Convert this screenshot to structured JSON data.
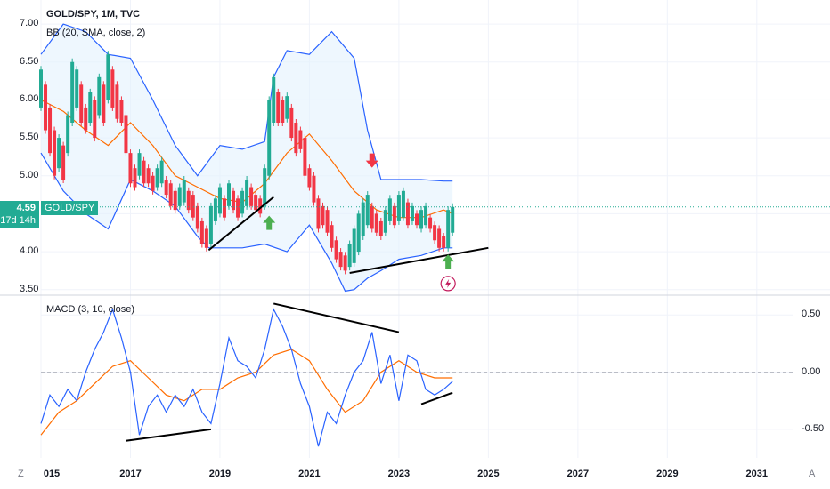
{
  "chart_data": {
    "type": "candlestick",
    "title": "GOLD/SPY, 1M, TVC",
    "indicator_bb_label": "BB (20, SMA, close, 2)",
    "indicator_macd_label": "MACD (3, 10, close)",
    "symbol": "GOLD/SPY",
    "last_price": "4.59",
    "countdown": "17d 14h",
    "price_axis": {
      "ticks": [
        "7.00",
        "6.50",
        "6.00",
        "5.50",
        "5.00",
        "4.50",
        "4.00",
        "3.50"
      ],
      "tick_values": [
        7.0,
        6.5,
        6.0,
        5.5,
        5.0,
        4.5,
        4.0,
        3.5
      ],
      "ylim": [
        3.45,
        7.2
      ]
    },
    "macd_axis": {
      "ticks": [
        "0.50",
        "0.00",
        "-0.50"
      ],
      "tick_values": [
        0.5,
        0.0,
        -0.5
      ],
      "ylim": [
        -0.75,
        0.65
      ]
    },
    "x_axis": {
      "ticks": [
        "015",
        "2017",
        "2019",
        "2021",
        "2023",
        "2025",
        "2027",
        "2029",
        "2031"
      ],
      "tick_years": [
        2015,
        2017,
        2019,
        2021,
        2023,
        2025,
        2027,
        2029,
        2031
      ],
      "xlim": [
        2015,
        2031.8
      ]
    },
    "corner_left": "Z",
    "corner_right": "A",
    "colors": {
      "up": "#22ab94",
      "down": "#f23645",
      "band": "#2962ff",
      "basis": "#ff6d00",
      "band_fill": "#e3f2fd",
      "macd": "#2962ff",
      "signal": "#ff6d00"
    },
    "bb_upper": [
      [
        2015.0,
        6.6
      ],
      [
        2015.5,
        7.0
      ],
      [
        2016.0,
        6.9
      ],
      [
        2016.5,
        6.6
      ],
      [
        2017.0,
        6.55
      ],
      [
        2017.5,
        6.0
      ],
      [
        2018.0,
        5.4
      ],
      [
        2018.5,
        5.0
      ],
      [
        2019.0,
        5.4
      ],
      [
        2019.5,
        5.35
      ],
      [
        2020.0,
        5.45
      ],
      [
        2020.2,
        6.3
      ],
      [
        2020.5,
        6.65
      ],
      [
        2021.0,
        6.6
      ],
      [
        2021.5,
        6.9
      ],
      [
        2022.0,
        6.55
      ],
      [
        2022.3,
        5.6
      ],
      [
        2022.6,
        4.95
      ],
      [
        2023.0,
        4.95
      ],
      [
        2023.5,
        4.95
      ],
      [
        2024.0,
        4.93
      ],
      [
        2024.2,
        4.93
      ]
    ],
    "bb_basis": [
      [
        2015.0,
        6.0
      ],
      [
        2015.5,
        5.85
      ],
      [
        2016.0,
        5.6
      ],
      [
        2016.5,
        5.4
      ],
      [
        2017.0,
        5.7
      ],
      [
        2017.5,
        5.4
      ],
      [
        2018.0,
        5.0
      ],
      [
        2018.5,
        4.85
      ],
      [
        2019.0,
        4.7
      ],
      [
        2019.5,
        4.65
      ],
      [
        2020.0,
        4.9
      ],
      [
        2020.5,
        5.3
      ],
      [
        2021.0,
        5.55
      ],
      [
        2021.5,
        5.2
      ],
      [
        2022.0,
        4.8
      ],
      [
        2022.5,
        4.55
      ],
      [
        2023.0,
        4.45
      ],
      [
        2023.5,
        4.45
      ],
      [
        2024.0,
        4.55
      ],
      [
        2024.2,
        4.5
      ]
    ],
    "bb_lower": [
      [
        2015.0,
        5.3
      ],
      [
        2015.5,
        4.8
      ],
      [
        2016.0,
        4.5
      ],
      [
        2016.5,
        4.3
      ],
      [
        2017.0,
        4.95
      ],
      [
        2017.5,
        4.8
      ],
      [
        2018.0,
        4.6
      ],
      [
        2018.5,
        4.2
      ],
      [
        2018.75,
        4.05
      ],
      [
        2019.0,
        4.05
      ],
      [
        2019.5,
        4.05
      ],
      [
        2020.0,
        4.1
      ],
      [
        2020.5,
        4.0
      ],
      [
        2021.0,
        4.35
      ],
      [
        2021.5,
        3.85
      ],
      [
        2021.8,
        3.48
      ],
      [
        2022.0,
        3.5
      ],
      [
        2022.3,
        3.65
      ],
      [
        2022.6,
        3.75
      ],
      [
        2023.0,
        3.9
      ],
      [
        2023.5,
        3.95
      ],
      [
        2024.0,
        4.05
      ],
      [
        2024.2,
        4.05
      ]
    ],
    "candles": [
      [
        2015.0,
        6.4,
        5.9
      ],
      [
        2015.1,
        6.2,
        5.6
      ],
      [
        2015.2,
        5.9,
        5.3
      ],
      [
        2015.3,
        5.6,
        5.0
      ],
      [
        2015.4,
        5.5,
        5.1
      ],
      [
        2015.5,
        5.4,
        4.95
      ],
      [
        2015.6,
        5.8,
        5.3
      ],
      [
        2015.7,
        6.5,
        5.7
      ],
      [
        2015.8,
        6.4,
        5.9
      ],
      [
        2015.9,
        6.2,
        5.7
      ],
      [
        2016.0,
        5.9,
        5.6
      ],
      [
        2016.1,
        6.1,
        5.7
      ],
      [
        2016.2,
        6.0,
        5.5
      ],
      [
        2016.3,
        6.3,
        5.8
      ],
      [
        2016.4,
        6.2,
        5.7
      ],
      [
        2016.5,
        6.6,
        6.0
      ],
      [
        2016.6,
        6.4,
        5.9
      ],
      [
        2016.7,
        6.2,
        5.75
      ],
      [
        2016.8,
        6.0,
        5.7
      ],
      [
        2016.9,
        5.8,
        5.3
      ],
      [
        2017.0,
        5.3,
        4.9
      ],
      [
        2017.1,
        5.1,
        4.85
      ],
      [
        2017.2,
        5.3,
        5.0
      ],
      [
        2017.3,
        5.2,
        4.9
      ],
      [
        2017.4,
        5.1,
        4.9
      ],
      [
        2017.5,
        5.0,
        4.8
      ],
      [
        2017.6,
        5.1,
        4.85
      ],
      [
        2017.7,
        5.2,
        4.9
      ],
      [
        2017.8,
        4.95,
        4.75
      ],
      [
        2017.9,
        4.9,
        4.6
      ],
      [
        2018.0,
        4.8,
        4.55
      ],
      [
        2018.1,
        4.85,
        4.6
      ],
      [
        2018.2,
        4.95,
        4.65
      ],
      [
        2018.3,
        4.8,
        4.55
      ],
      [
        2018.4,
        4.75,
        4.45
      ],
      [
        2018.5,
        4.6,
        4.3
      ],
      [
        2018.6,
        4.4,
        4.1
      ],
      [
        2018.7,
        4.3,
        4.05
      ],
      [
        2018.8,
        4.6,
        4.1
      ],
      [
        2018.9,
        4.7,
        4.4
      ],
      [
        2019.0,
        4.85,
        4.5
      ],
      [
        2019.1,
        4.7,
        4.45
      ],
      [
        2019.2,
        4.9,
        4.6
      ],
      [
        2019.3,
        4.8,
        4.55
      ],
      [
        2019.4,
        4.7,
        4.45
      ],
      [
        2019.5,
        4.8,
        4.5
      ],
      [
        2019.6,
        4.95,
        4.6
      ],
      [
        2019.7,
        4.85,
        4.6
      ],
      [
        2019.8,
        4.75,
        4.55
      ],
      [
        2019.9,
        4.7,
        4.5
      ],
      [
        2020.0,
        5.1,
        4.6
      ],
      [
        2020.1,
        6.0,
        5.0
      ],
      [
        2020.2,
        6.3,
        5.7
      ],
      [
        2020.3,
        6.1,
        5.7
      ],
      [
        2020.4,
        6.0,
        5.7
      ],
      [
        2020.5,
        6.05,
        5.75
      ],
      [
        2020.6,
        5.9,
        5.5
      ],
      [
        2020.7,
        5.7,
        5.3
      ],
      [
        2020.8,
        5.6,
        5.35
      ],
      [
        2020.9,
        5.5,
        5.0
      ],
      [
        2021.0,
        5.1,
        4.85
      ],
      [
        2021.1,
        5.0,
        4.65
      ],
      [
        2021.2,
        4.7,
        4.3
      ],
      [
        2021.3,
        4.6,
        4.35
      ],
      [
        2021.4,
        4.55,
        4.25
      ],
      [
        2021.5,
        4.35,
        4.05
      ],
      [
        2021.6,
        4.15,
        3.9
      ],
      [
        2021.7,
        4.0,
        3.8
      ],
      [
        2021.8,
        3.95,
        3.75
      ],
      [
        2021.9,
        4.1,
        3.8
      ],
      [
        2022.0,
        4.3,
        3.85
      ],
      [
        2022.1,
        4.5,
        4.0
      ],
      [
        2022.2,
        4.65,
        4.2
      ],
      [
        2022.3,
        4.75,
        4.35
      ],
      [
        2022.4,
        4.6,
        4.3
      ],
      [
        2022.5,
        4.5,
        4.25
      ],
      [
        2022.6,
        4.4,
        4.2
      ],
      [
        2022.7,
        4.55,
        4.25
      ],
      [
        2022.8,
        4.7,
        4.4
      ],
      [
        2022.9,
        4.6,
        4.35
      ],
      [
        2023.0,
        4.75,
        4.4
      ],
      [
        2023.1,
        4.8,
        4.45
      ],
      [
        2023.2,
        4.65,
        4.35
      ],
      [
        2023.3,
        4.6,
        4.4
      ],
      [
        2023.4,
        4.5,
        4.35
      ],
      [
        2023.5,
        4.55,
        4.3
      ],
      [
        2023.6,
        4.6,
        4.35
      ],
      [
        2023.7,
        4.45,
        4.3
      ],
      [
        2023.8,
        4.35,
        4.15
      ],
      [
        2023.9,
        4.3,
        4.05
      ],
      [
        2024.0,
        4.2,
        4.05
      ],
      [
        2024.1,
        4.55,
        4.05
      ],
      [
        2024.2,
        4.59,
        4.25
      ]
    ],
    "macd": [
      [
        2015.0,
        -0.45
      ],
      [
        2015.2,
        -0.2
      ],
      [
        2015.4,
        -0.3
      ],
      [
        2015.6,
        -0.15
      ],
      [
        2015.8,
        -0.25
      ],
      [
        2016.0,
        0.0
      ],
      [
        2016.2,
        0.2
      ],
      [
        2016.4,
        0.35
      ],
      [
        2016.6,
        0.55
      ],
      [
        2016.8,
        0.3
      ],
      [
        2017.0,
        0.0
      ],
      [
        2017.2,
        -0.55
      ],
      [
        2017.4,
        -0.3
      ],
      [
        2017.6,
        -0.2
      ],
      [
        2017.8,
        -0.35
      ],
      [
        2018.0,
        -0.2
      ],
      [
        2018.2,
        -0.3
      ],
      [
        2018.4,
        -0.15
      ],
      [
        2018.6,
        -0.35
      ],
      [
        2018.8,
        -0.45
      ],
      [
        2019.0,
        -0.1
      ],
      [
        2019.2,
        0.3
      ],
      [
        2019.4,
        0.1
      ],
      [
        2019.6,
        0.05
      ],
      [
        2019.8,
        -0.05
      ],
      [
        2020.0,
        0.2
      ],
      [
        2020.2,
        0.55
      ],
      [
        2020.4,
        0.4
      ],
      [
        2020.6,
        0.2
      ],
      [
        2020.8,
        -0.1
      ],
      [
        2021.0,
        -0.3
      ],
      [
        2021.2,
        -0.65
      ],
      [
        2021.4,
        -0.35
      ],
      [
        2021.6,
        -0.45
      ],
      [
        2021.8,
        -0.2
      ],
      [
        2022.0,
        0.0
      ],
      [
        2022.2,
        0.1
      ],
      [
        2022.4,
        0.35
      ],
      [
        2022.6,
        -0.1
      ],
      [
        2022.8,
        0.15
      ],
      [
        2023.0,
        -0.25
      ],
      [
        2023.2,
        0.15
      ],
      [
        2023.4,
        0.1
      ],
      [
        2023.6,
        -0.15
      ],
      [
        2023.8,
        -0.2
      ],
      [
        2024.0,
        -0.15
      ],
      [
        2024.2,
        -0.08
      ]
    ],
    "signal": [
      [
        2015.0,
        -0.55
      ],
      [
        2015.4,
        -0.35
      ],
      [
        2015.8,
        -0.25
      ],
      [
        2016.2,
        -0.1
      ],
      [
        2016.6,
        0.05
      ],
      [
        2017.0,
        0.1
      ],
      [
        2017.4,
        -0.05
      ],
      [
        2017.8,
        -0.2
      ],
      [
        2018.2,
        -0.25
      ],
      [
        2018.6,
        -0.15
      ],
      [
        2019.0,
        -0.15
      ],
      [
        2019.4,
        -0.05
      ],
      [
        2019.8,
        0.0
      ],
      [
        2020.2,
        0.15
      ],
      [
        2020.6,
        0.2
      ],
      [
        2021.0,
        0.1
      ],
      [
        2021.4,
        -0.15
      ],
      [
        2021.8,
        -0.35
      ],
      [
        2022.2,
        -0.25
      ],
      [
        2022.6,
        0.0
      ],
      [
        2023.0,
        0.1
      ],
      [
        2023.4,
        0.0
      ],
      [
        2023.8,
        -0.05
      ],
      [
        2024.2,
        -0.05
      ]
    ],
    "trendlines_price": [
      [
        [
          2018.75,
          4.02
        ],
        [
          2020.2,
          4.72
        ]
      ],
      [
        [
          2021.9,
          3.72
        ],
        [
          2025.0,
          4.05
        ]
      ]
    ],
    "trendlines_macd": [
      [
        [
          2020.2,
          0.6
        ],
        [
          2023.0,
          0.35
        ]
      ],
      [
        [
          2016.9,
          -0.6
        ],
        [
          2018.8,
          -0.5
        ]
      ],
      [
        [
          2023.5,
          -0.28
        ],
        [
          2024.2,
          -0.18
        ]
      ]
    ],
    "arrows": [
      {
        "x": 2020.1,
        "y": 4.38,
        "dir": "up",
        "color": "#4caf50"
      },
      {
        "x": 2022.4,
        "y": 5.2,
        "dir": "down",
        "color": "#f23645"
      },
      {
        "x": 2024.1,
        "y": 3.87,
        "dir": "up",
        "color": "#4caf50"
      }
    ],
    "event_marker": {
      "x": 2024.1,
      "y": 3.58,
      "icon": "lightning-icon"
    },
    "price_line": 4.59
  }
}
